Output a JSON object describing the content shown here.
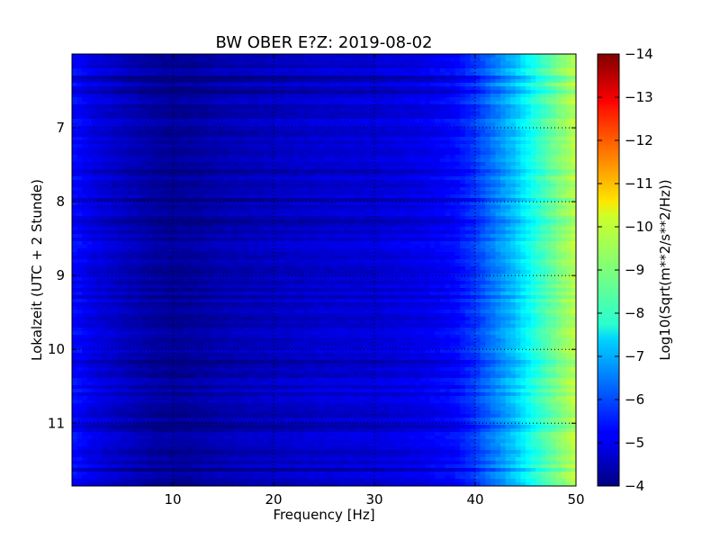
{
  "chart_data": {
    "type": "heatmap",
    "title": "BW OBER E?Z: 2019-08-02",
    "xlabel": "Frequency [Hz]",
    "ylabel": "Lokalzeit (UTC + 2 Stunde)",
    "xlim": [
      0,
      50
    ],
    "ylim": [
      6.0,
      11.85
    ],
    "y_axis_inverted": true,
    "x_ticks": [
      10,
      20,
      30,
      40,
      50
    ],
    "x_tick_labels": [
      "10",
      "20",
      "30",
      "40",
      "50"
    ],
    "y_ticks": [
      7,
      8,
      9,
      10,
      11
    ],
    "y_tick_labels": [
      "7",
      "8",
      "9",
      "10",
      "11"
    ],
    "grid": "dotted, at ticks",
    "colormap": "jet",
    "colorbar": {
      "label": "Log10(Sqrt(m**2/s**2/Hz))",
      "range": [
        -14,
        -4
      ],
      "ticks": [
        -4,
        -5,
        -6,
        -7,
        -8,
        -9,
        -10,
        -11,
        -12,
        -13,
        -14
      ],
      "tick_labels": [
        "−4",
        "−5",
        "−6",
        "−7",
        "−8",
        "−9",
        "−10",
        "−11",
        "−12",
        "−13",
        "−14"
      ]
    },
    "spectral_profile": {
      "frequency_hz": [
        0.5,
        2,
        5,
        8,
        10,
        12,
        15,
        20,
        25,
        30,
        35,
        38,
        40,
        42,
        44,
        46,
        48,
        50
      ],
      "log10_amplitude": [
        -5.3,
        -5.0,
        -4.65,
        -4.35,
        -4.25,
        -4.3,
        -4.5,
        -4.65,
        -4.8,
        -4.85,
        -5.05,
        -5.3,
        -5.8,
        -6.5,
        -7.2,
        -8.1,
        -8.9,
        -9.6
      ]
    }
  }
}
